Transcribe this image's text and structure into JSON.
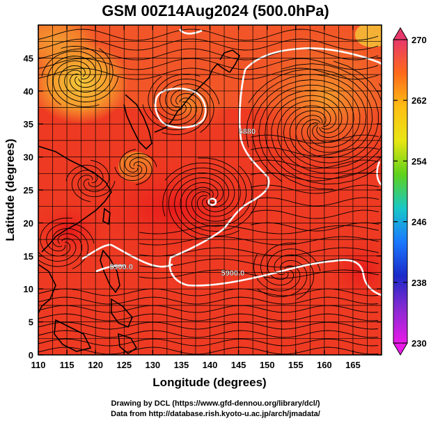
{
  "title": "GSM 00Z14Aug2024 (500.0hPa)",
  "map": {
    "xlabel": "Longitude (degrees)",
    "ylabel": "Latitude  (degrees)",
    "lon_range": [
      110,
      170
    ],
    "lat_range": [
      0,
      50
    ],
    "x_ticks": [
      "110",
      "115",
      "120",
      "125",
      "130",
      "135",
      "140",
      "145",
      "150",
      "155",
      "160",
      "165"
    ],
    "y_ticks": [
      "0",
      "5",
      "10",
      "15",
      "20",
      "25",
      "30",
      "35",
      "40",
      "45"
    ],
    "contour_labels": [
      {
        "text": "5900.0",
        "lon": 124.5,
        "lat": 13.0
      },
      {
        "text": "5900.0",
        "lon": 144.0,
        "lat": 12.0
      },
      {
        "text": "5880",
        "lon": 146.5,
        "lat": 33.5
      }
    ]
  },
  "colorbar": {
    "ticks": [
      "270",
      "262",
      "254",
      "246",
      "238",
      "230"
    ],
    "colors": [
      "#e8386a",
      "#ff6a1a",
      "#ffbe14",
      "#e8e614",
      "#5fd21a",
      "#18c8c8",
      "#1a78ff",
      "#1a2ac8",
      "#8a2ad2",
      "#e81ae8"
    ]
  },
  "colors": {
    "field_low": "#e81a1a",
    "field_mid": "#f25a28",
    "field_warm": "#f59a2c",
    "field_high": "#f5c83a",
    "contour": "#ffffff",
    "streamline": "#000000"
  },
  "footer": {
    "line1": "Drawing by DCL (https://www.gfd-dennou.org/library/dcl/)",
    "line2": "Data from http://database.rish.kyoto-u.ac.jp/arch/jmadata/"
  }
}
